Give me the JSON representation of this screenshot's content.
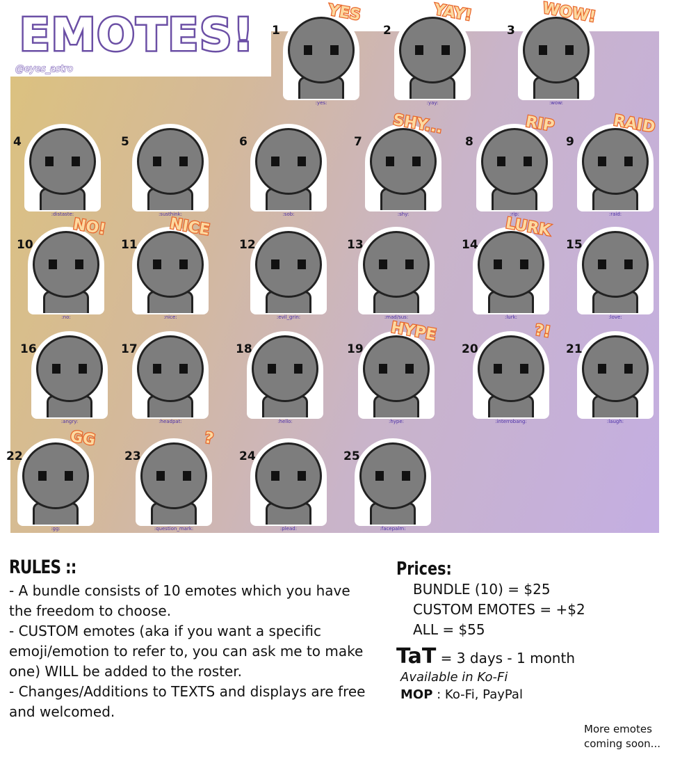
{
  "header": {
    "title": "EMOTES!",
    "handle": "@eyes_astro"
  },
  "emotes": [
    {
      "num": "1",
      "word": "YES",
      "label": ":yes:"
    },
    {
      "num": "2",
      "word": "YAY!",
      "label": ":yay:"
    },
    {
      "num": "3",
      "word": "WOW!",
      "label": ":wow:"
    },
    {
      "num": "4",
      "word": "",
      "label": ":distaste:"
    },
    {
      "num": "5",
      "word": "",
      "label": ":susthink:"
    },
    {
      "num": "6",
      "word": "",
      "label": ":sob:"
    },
    {
      "num": "7",
      "word": "SHY...",
      "label": ":shy:"
    },
    {
      "num": "8",
      "word": "RIP",
      "label": ":rip:"
    },
    {
      "num": "9",
      "word": "RAID",
      "label": ":raid:"
    },
    {
      "num": "10",
      "word": "NO!",
      "label": ":no:"
    },
    {
      "num": "11",
      "word": "NICE",
      "label": ":nice:"
    },
    {
      "num": "12",
      "word": "",
      "label": ":evil_grin:"
    },
    {
      "num": "13",
      "word": "",
      "label": ":mad/sus:"
    },
    {
      "num": "14",
      "word": "LURK",
      "label": ":lurk:"
    },
    {
      "num": "15",
      "word": "",
      "label": ":love:"
    },
    {
      "num": "16",
      "word": "",
      "label": ":angry:"
    },
    {
      "num": "17",
      "word": "",
      "label": ":headpat:"
    },
    {
      "num": "18",
      "word": "",
      "label": ":hello:"
    },
    {
      "num": "19",
      "word": "HYPE",
      "label": ":hype:"
    },
    {
      "num": "20",
      "word": "?!",
      "label": ":interrobang:"
    },
    {
      "num": "21",
      "word": "",
      "label": ":laugh:"
    },
    {
      "num": "22",
      "word": "GG",
      "label": ":gg:"
    },
    {
      "num": "23",
      "word": "?",
      "label": ":question_mark:"
    },
    {
      "num": "24",
      "word": "",
      "label": ":plead:"
    },
    {
      "num": "25",
      "word": "",
      "label": ":facepalm:"
    }
  ],
  "rules": {
    "heading": "RULES ::",
    "items": [
      "- A bundle consists of 10 emotes which you have the freedom to choose.",
      "- CUSTOM emotes (aka if you want a specific emoji/emotion to refer to, you can ask me to make one) WILL be added to the roster.",
      "- Changes/Additions to TEXTS and displays are free and welcomed."
    ]
  },
  "prices": {
    "heading": "Prices:",
    "lines": [
      "BUNDLE (10) = $25",
      "CUSTOM EMOTES = +$2",
      "ALL = $55"
    ],
    "tat_label": "TaT",
    "tat_value": " = 3 days - 1 month",
    "availability": "Available in Ko-Fi",
    "mop_label": "MOP",
    "mop_value": " : Ko-Fi, PayPal"
  },
  "footer": {
    "more": "More emotes coming soon..."
  },
  "colors": {
    "title_outline": "#6b4fa5",
    "word_fill": "#fcd9a0",
    "word_outline": "#e8652a",
    "label_text": "#4b2fa8",
    "gradient_start": "#dcc27e",
    "gradient_end": "#c4aee2"
  }
}
